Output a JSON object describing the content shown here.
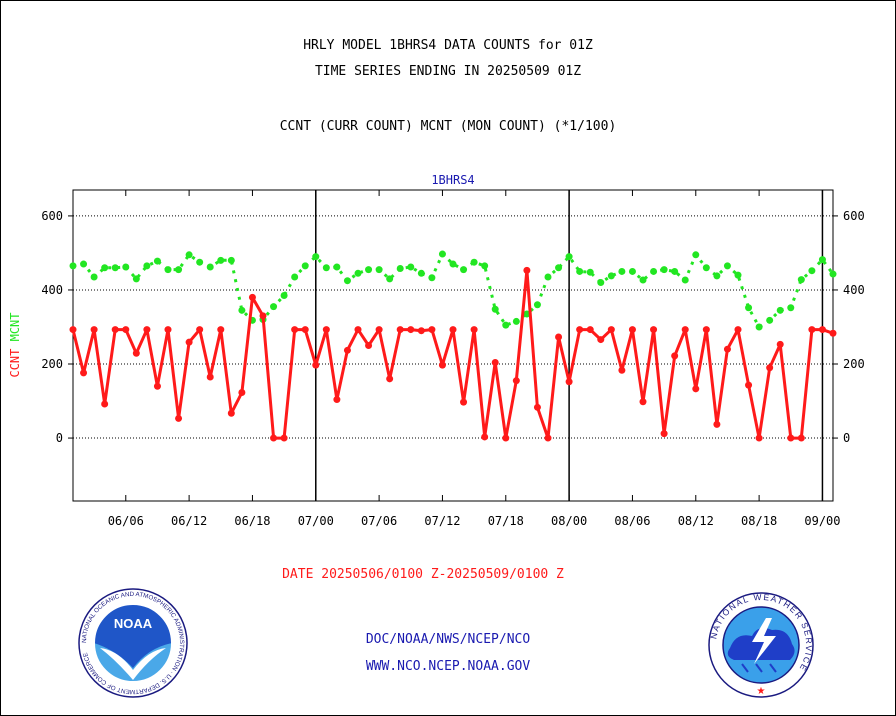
{
  "chart_data": {
    "type": "line",
    "title_lines": [
      "HRLY MODEL 1BHRS4 DATA COUNTS for 01Z",
      "TIME SERIES ENDING IN 20250509 01Z"
    ],
    "subtitle": "CCNT (CURR COUNT) MCNT (MON COUNT) (*1/100)",
    "station_label": "1BHRS4",
    "ylabel_left": [
      "CCNT",
      "MCNT"
    ],
    "xlabel": "DATE 20250506/0100 Z-20250509/0100 Z",
    "ylim": [
      -170,
      670
    ],
    "yticks": [
      0,
      200,
      400,
      600
    ],
    "ytick_labels": [
      "0",
      "200",
      "400",
      "600"
    ],
    "xticks": [
      "06/06",
      "06/12",
      "06/18",
      "07/00",
      "07/06",
      "07/12",
      "07/18",
      "08/00",
      "08/06",
      "08/12",
      "08/18",
      "09/00"
    ],
    "colors": {
      "ccnt": "#ff1a1a",
      "mcnt": "#22e622",
      "title": "#000000",
      "station": "#1a1ab0",
      "date": "#ff1a1a"
    },
    "series": [
      {
        "name": "CCNT",
        "values": [
          293,
          176,
          293,
          92,
          293,
          293,
          229,
          293,
          140,
          293,
          53,
          259,
          293,
          165,
          293,
          67,
          123,
          380,
          330,
          0,
          0,
          293,
          293,
          197,
          293,
          104,
          237,
          293,
          250,
          293,
          160,
          293,
          293,
          290,
          293,
          197,
          293,
          97,
          293,
          3,
          204,
          0,
          155,
          453,
          83,
          0,
          273,
          152,
          293,
          293,
          266,
          293,
          183,
          293,
          98,
          293,
          12,
          222,
          293,
          133,
          293,
          37,
          240,
          293,
          143,
          0,
          190,
          253,
          0,
          0,
          293,
          293,
          283
        ]
      },
      {
        "name": "MCNT",
        "values": [
          465,
          470,
          435,
          460,
          460,
          462,
          430,
          465,
          478,
          455,
          455,
          495,
          475,
          462,
          480,
          480,
          345,
          318,
          320,
          355,
          385,
          435,
          465,
          490,
          460,
          462,
          425,
          445,
          455,
          455,
          430,
          458,
          462,
          445,
          433,
          497,
          470,
          455,
          475,
          465,
          348,
          305,
          315,
          335,
          360,
          435,
          460,
          490,
          450,
          448,
          420,
          438,
          450,
          450,
          427,
          450,
          455,
          450,
          427,
          495,
          460,
          438,
          465,
          440,
          352,
          300,
          318,
          345,
          352,
          428,
          452,
          482,
          443
        ]
      }
    ],
    "day_boundaries": [
      23,
      47,
      71
    ]
  },
  "footer": {
    "line1": "DOC/NOAA/NWS/NCEP/NCO",
    "line2": "WWW.NCO.NCEP.NOAA.GOV"
  },
  "logos": {
    "noaa_text": "NOAA",
    "noaa_ring": "NATIONAL OCEANIC AND ATMOSPHERIC ADMINISTRATION · U.S. DEPARTMENT OF COMMERCE",
    "nws_ring": "NATIONAL WEATHER SERVICE"
  }
}
